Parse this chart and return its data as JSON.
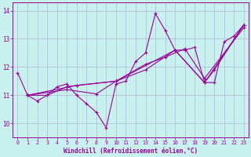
{
  "xlabel": "Windchill (Refroidissement éolien,°C)",
  "bg_color": "#c8f0ee",
  "line_color": "#990099",
  "grid_color": "#aaaacc",
  "xlim": [
    -0.5,
    23.5
  ],
  "ylim": [
    9.5,
    14.3
  ],
  "yticks": [
    10,
    11,
    12,
    13,
    14
  ],
  "xticks": [
    0,
    1,
    2,
    3,
    4,
    5,
    6,
    7,
    8,
    9,
    10,
    11,
    12,
    13,
    14,
    15,
    16,
    17,
    18,
    19,
    20,
    21,
    22,
    23
  ],
  "lines": [
    {
      "x": [
        0,
        1,
        2,
        3,
        4,
        5,
        6,
        7,
        8,
        9,
        10,
        11,
        12,
        13,
        14,
        15,
        16,
        17,
        18,
        19,
        20,
        21,
        22,
        23
      ],
      "y": [
        11.8,
        11.0,
        10.8,
        11.0,
        11.3,
        11.4,
        11.0,
        10.7,
        10.4,
        9.85,
        11.4,
        11.5,
        12.2,
        12.5,
        13.9,
        13.3,
        12.6,
        12.6,
        12.7,
        11.45,
        11.45,
        12.9,
        13.1,
        13.5
      ]
    },
    {
      "x": [
        1,
        3,
        5,
        6,
        10,
        13,
        16,
        19,
        20,
        23
      ],
      "y": [
        11.0,
        11.0,
        11.3,
        11.35,
        11.5,
        11.9,
        12.6,
        11.45,
        11.9,
        13.5
      ]
    },
    {
      "x": [
        1,
        5,
        8,
        10,
        13,
        15,
        17,
        19,
        23
      ],
      "y": [
        11.0,
        11.2,
        11.05,
        11.5,
        12.1,
        12.35,
        12.65,
        11.6,
        13.4
      ]
    },
    {
      "x": [
        1,
        6,
        10,
        16,
        19,
        23
      ],
      "y": [
        11.0,
        11.35,
        11.5,
        12.6,
        11.45,
        13.5
      ]
    }
  ]
}
